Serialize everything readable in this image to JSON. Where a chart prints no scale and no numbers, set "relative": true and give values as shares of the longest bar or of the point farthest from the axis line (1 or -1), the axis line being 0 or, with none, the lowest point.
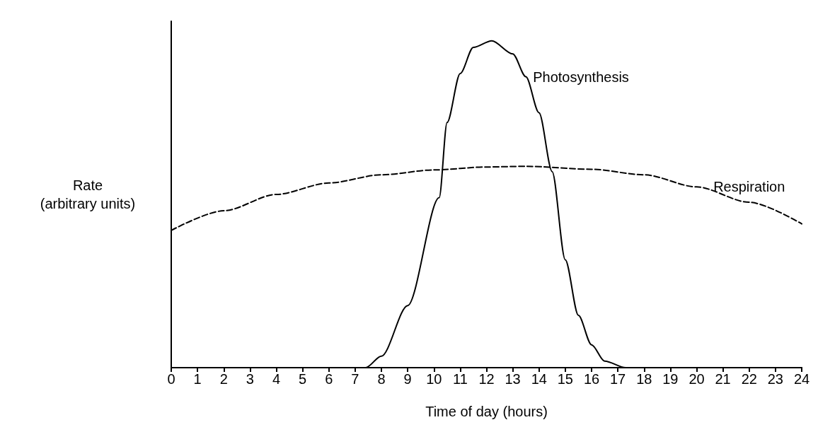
{
  "chart_data": {
    "type": "line",
    "xlabel": "Time of day (hours)",
    "ylabel": "Rate\n(arbitrary units)",
    "relative": true,
    "xlim": [
      0,
      24
    ],
    "xticks": [
      0,
      1,
      2,
      3,
      4,
      5,
      6,
      7,
      8,
      9,
      10,
      11,
      12,
      13,
      14,
      15,
      16,
      17,
      18,
      19,
      20,
      21,
      22,
      23,
      24
    ],
    "marker": "none",
    "grid": false,
    "series": [
      {
        "name": "Photosynthesis",
        "color": "#000000",
        "line_style": "solid",
        "x": [
          0,
          7.4,
          8,
          9,
          10.2,
          10.5,
          11,
          11.5,
          12.2,
          13,
          13.5,
          14,
          14.5,
          15,
          15.5,
          16,
          16.5,
          17.3,
          24
        ],
        "values": [
          0,
          0,
          0.035,
          0.19,
          0.52,
          0.75,
          0.9,
          0.98,
          1,
          0.96,
          0.89,
          0.78,
          0.6,
          0.33,
          0.16,
          0.07,
          0.02,
          0,
          0
        ]
      },
      {
        "name": "Respiration",
        "color": "#000000",
        "line_style": "dashed",
        "x": [
          0,
          2,
          4,
          6,
          8,
          10,
          12,
          13.5,
          16,
          18,
          20,
          22,
          24
        ],
        "values": [
          0.42,
          0.48,
          0.53,
          0.565,
          0.59,
          0.605,
          0.614,
          0.616,
          0.607,
          0.59,
          0.553,
          0.506,
          0.44
        ]
      }
    ]
  }
}
